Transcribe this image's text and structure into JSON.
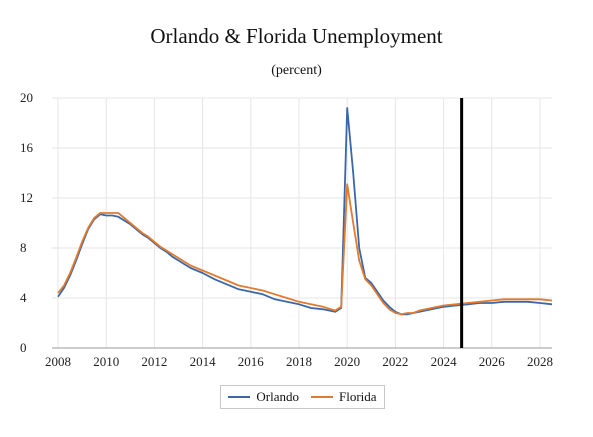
{
  "colors": {
    "orlando": "#3a67a7",
    "florida": "#e07b2f",
    "grid": "#e6e6e6",
    "marker": "#000000"
  },
  "chart_data": {
    "type": "line",
    "title": "Orlando & Florida Unemployment",
    "subtitle": "(percent)",
    "xlabel": "",
    "ylabel": "",
    "xlim": [
      2007.75,
      2028.5
    ],
    "ylim": [
      0,
      20
    ],
    "y_ticks": [
      0,
      4,
      8,
      12,
      16,
      20
    ],
    "x_ticks": [
      2008,
      2010,
      2012,
      2014,
      2016,
      2018,
      2020,
      2022,
      2024,
      2026,
      2028
    ],
    "grid": true,
    "legend_position": "bottom",
    "vertical_marker_x": 2024.75,
    "series": [
      {
        "name": "Orlando",
        "color": "#3a67a7",
        "x": [
          2008.0,
          2008.25,
          2008.5,
          2008.75,
          2009.0,
          2009.25,
          2009.5,
          2009.75,
          2010.0,
          2010.25,
          2010.5,
          2010.75,
          2011.0,
          2011.25,
          2011.5,
          2011.75,
          2012.0,
          2012.25,
          2012.5,
          2012.75,
          2013.0,
          2013.25,
          2013.5,
          2013.75,
          2014.0,
          2014.5,
          2015.0,
          2015.5,
          2016.0,
          2016.5,
          2017.0,
          2017.5,
          2018.0,
          2018.5,
          2019.0,
          2019.5,
          2019.75,
          2020.0,
          2020.25,
          2020.5,
          2020.75,
          2021.0,
          2021.25,
          2021.5,
          2021.75,
          2022.0,
          2022.25,
          2022.5,
          2022.75,
          2023.0,
          2023.5,
          2024.0,
          2024.5,
          2025.0,
          2025.5,
          2026.0,
          2026.5,
          2027.0,
          2027.5,
          2028.0,
          2028.5
        ],
        "values": [
          4.1,
          4.8,
          5.8,
          7.0,
          8.3,
          9.5,
          10.3,
          10.7,
          10.6,
          10.6,
          10.5,
          10.2,
          9.9,
          9.5,
          9.1,
          8.8,
          8.4,
          8.0,
          7.7,
          7.3,
          7.0,
          6.7,
          6.4,
          6.2,
          6.0,
          5.5,
          5.1,
          4.7,
          4.5,
          4.3,
          3.9,
          3.7,
          3.5,
          3.2,
          3.1,
          2.9,
          3.2,
          19.2,
          14.0,
          8.0,
          5.6,
          5.2,
          4.5,
          3.8,
          3.3,
          2.9,
          2.7,
          2.7,
          2.8,
          2.9,
          3.1,
          3.3,
          3.4,
          3.5,
          3.6,
          3.6,
          3.7,
          3.7,
          3.7,
          3.6,
          3.5
        ]
      },
      {
        "name": "Florida",
        "color": "#e07b2f",
        "x": [
          2008.0,
          2008.25,
          2008.5,
          2008.75,
          2009.0,
          2009.25,
          2009.5,
          2009.75,
          2010.0,
          2010.25,
          2010.5,
          2010.75,
          2011.0,
          2011.25,
          2011.5,
          2011.75,
          2012.0,
          2012.25,
          2012.5,
          2012.75,
          2013.0,
          2013.25,
          2013.5,
          2013.75,
          2014.0,
          2014.5,
          2015.0,
          2015.5,
          2016.0,
          2016.5,
          2017.0,
          2017.5,
          2018.0,
          2018.5,
          2019.0,
          2019.5,
          2019.75,
          2020.0,
          2020.25,
          2020.5,
          2020.75,
          2021.0,
          2021.25,
          2021.5,
          2021.75,
          2022.0,
          2022.25,
          2022.5,
          2022.75,
          2023.0,
          2023.5,
          2024.0,
          2024.5,
          2025.0,
          2025.5,
          2026.0,
          2026.5,
          2027.0,
          2027.5,
          2028.0,
          2028.5
        ],
        "values": [
          4.4,
          5.0,
          6.0,
          7.2,
          8.5,
          9.6,
          10.4,
          10.8,
          10.8,
          10.8,
          10.8,
          10.4,
          10.0,
          9.6,
          9.2,
          8.9,
          8.5,
          8.1,
          7.8,
          7.5,
          7.2,
          6.9,
          6.6,
          6.4,
          6.2,
          5.8,
          5.4,
          5.0,
          4.8,
          4.6,
          4.3,
          4.0,
          3.7,
          3.5,
          3.3,
          3.0,
          3.3,
          13.1,
          10.0,
          7.0,
          5.5,
          5.0,
          4.3,
          3.6,
          3.1,
          2.8,
          2.7,
          2.8,
          2.8,
          3.0,
          3.2,
          3.4,
          3.5,
          3.6,
          3.7,
          3.8,
          3.9,
          3.9,
          3.9,
          3.9,
          3.8
        ]
      }
    ]
  }
}
